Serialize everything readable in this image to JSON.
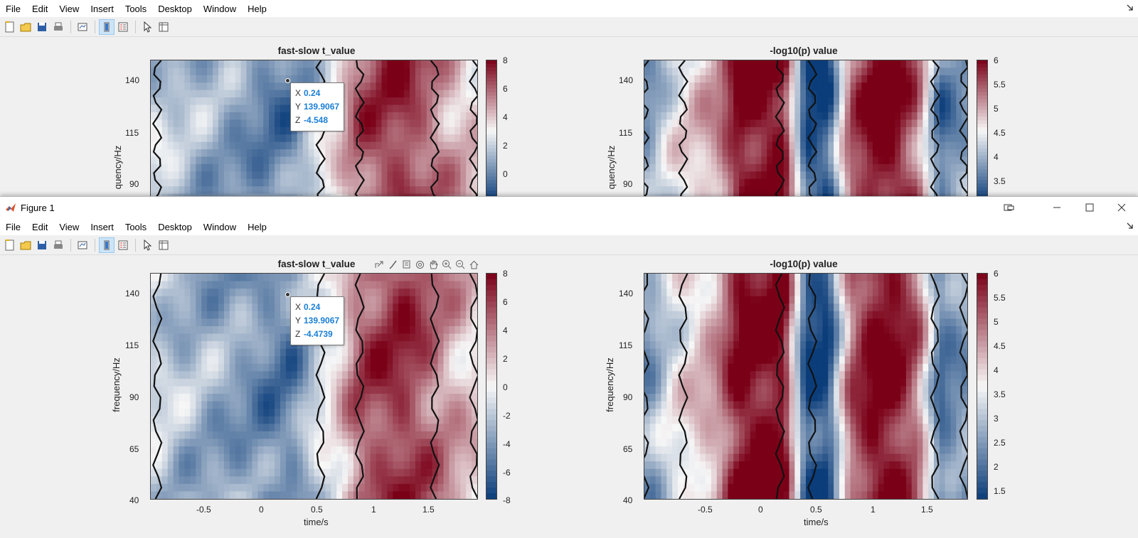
{
  "menu": [
    "File",
    "Edit",
    "View",
    "Insert",
    "Tools",
    "Desktop",
    "Window",
    "Help"
  ],
  "front_window": {
    "title": "Figure 1"
  },
  "colors": {
    "neg": "#0b3d7a",
    "mid": "#f7f7f7",
    "pos": "#7a0017"
  },
  "panels": {
    "tvalue": {
      "title": "fast-slow t_value",
      "ylabel": "frequency/Hz",
      "xlabel": "time/s",
      "yticks": [
        "140",
        "115",
        "90",
        "65",
        "40"
      ],
      "xticks": [
        "-0.5",
        "0",
        "0.5",
        "1",
        "1.5"
      ],
      "cbar_ticks": [
        "8",
        "6",
        "4",
        "2",
        "0",
        "-2",
        "-4",
        "-6",
        "-8"
      ]
    },
    "logp": {
      "title": "-log10(p) value",
      "ylabel": "frequency/Hz",
      "xlabel": "time/s",
      "yticks": [
        "140",
        "115",
        "90",
        "65",
        "40"
      ],
      "xticks": [
        "-0.5",
        "0",
        "0.5",
        "1",
        "1.5"
      ],
      "cbar_ticks": [
        "6",
        "5.5",
        "5",
        "4.5",
        "4",
        "3.5",
        "3",
        "2.5",
        "2",
        "1.5"
      ]
    }
  },
  "back_panels": {
    "tvalue_yticks": [
      "140",
      "115",
      "90"
    ],
    "tvalue_cbar": [
      "8",
      "6",
      "4",
      "2",
      "0"
    ],
    "logp_yticks": [
      "140",
      "115",
      "90"
    ],
    "logp_cbar": [
      "6",
      "5.5",
      "5",
      "4.5",
      "4",
      "3.5"
    ],
    "ylabel_partial": "quency/Hz"
  },
  "tooltip_back": {
    "x": "0.24",
    "y": "139.9067",
    "z": "-4.548"
  },
  "tooltip_front": {
    "x": "0.24",
    "y": "139.9067",
    "z": "-4.4739"
  },
  "chart_data": [
    {
      "type": "heatmap",
      "title": "fast-slow t_value",
      "xlabel": "time/s",
      "ylabel": "frequency/Hz",
      "xlim": [
        -0.95,
        1.95
      ],
      "ylim": [
        40,
        150
      ],
      "clim": [
        -8,
        8
      ],
      "colormap": "blue-white-red",
      "profile_time": [
        -0.9,
        -0.7,
        -0.5,
        -0.3,
        -0.1,
        0.1,
        0.3,
        0.5,
        0.7,
        0.9,
        1.1,
        1.3,
        1.5,
        1.7,
        1.9
      ],
      "profile_value": [
        -1.5,
        -2.5,
        -3,
        -3.5,
        -4,
        -5,
        -5,
        -2,
        0.5,
        5,
        6,
        6.5,
        5,
        3,
        1.5
      ]
    },
    {
      "type": "heatmap",
      "title": "-log10(p) value",
      "xlabel": "time/s",
      "ylabel": "frequency/Hz",
      "xlim": [
        -0.95,
        1.95
      ],
      "ylim": [
        40,
        150
      ],
      "clim": [
        1.3,
        6
      ],
      "colormap": "blue-white-red",
      "profile_time": [
        -0.9,
        -0.7,
        -0.5,
        -0.3,
        -0.1,
        0.1,
        0.3,
        0.5,
        0.7,
        0.9,
        1.1,
        1.3,
        1.5,
        1.7,
        1.9
      ],
      "profile_value": [
        2.5,
        3.5,
        4,
        4.5,
        6,
        6,
        6,
        1.5,
        1.5,
        5,
        6,
        6,
        5,
        2,
        2.5
      ]
    }
  ]
}
